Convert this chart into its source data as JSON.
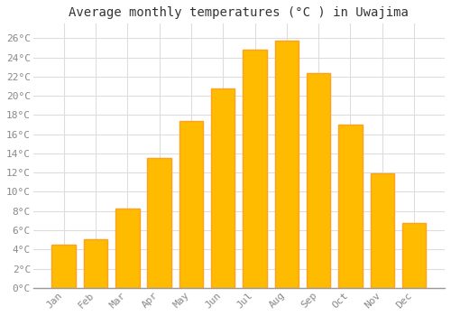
{
  "title": "Average monthly temperatures (°C ) in Uwajima",
  "months": [
    "Jan",
    "Feb",
    "Mar",
    "Apr",
    "May",
    "Jun",
    "Jul",
    "Aug",
    "Sep",
    "Oct",
    "Nov",
    "Dec"
  ],
  "values": [
    4.5,
    5.1,
    8.3,
    13.5,
    17.4,
    20.8,
    24.8,
    25.7,
    22.4,
    17.0,
    11.9,
    6.8
  ],
  "bar_color_left": "#FFA500",
  "bar_color_center": "#FFCC22",
  "bar_color_right": "#FFA500",
  "background_color": "#FFFFFF",
  "plot_bg_color": "#FFFFFF",
  "grid_color": "#DDDDDD",
  "ytick_labels": [
    "0°C",
    "2°C",
    "4°C",
    "6°C",
    "8°C",
    "10°C",
    "12°C",
    "14°C",
    "16°C",
    "18°C",
    "20°C",
    "22°C",
    "24°C",
    "26°C"
  ],
  "ytick_values": [
    0,
    2,
    4,
    6,
    8,
    10,
    12,
    14,
    16,
    18,
    20,
    22,
    24,
    26
  ],
  "ylim": [
    0,
    27.5
  ],
  "title_fontsize": 10,
  "tick_fontsize": 8,
  "tick_color": "#888888",
  "font_family": "monospace",
  "bar_width": 0.75
}
